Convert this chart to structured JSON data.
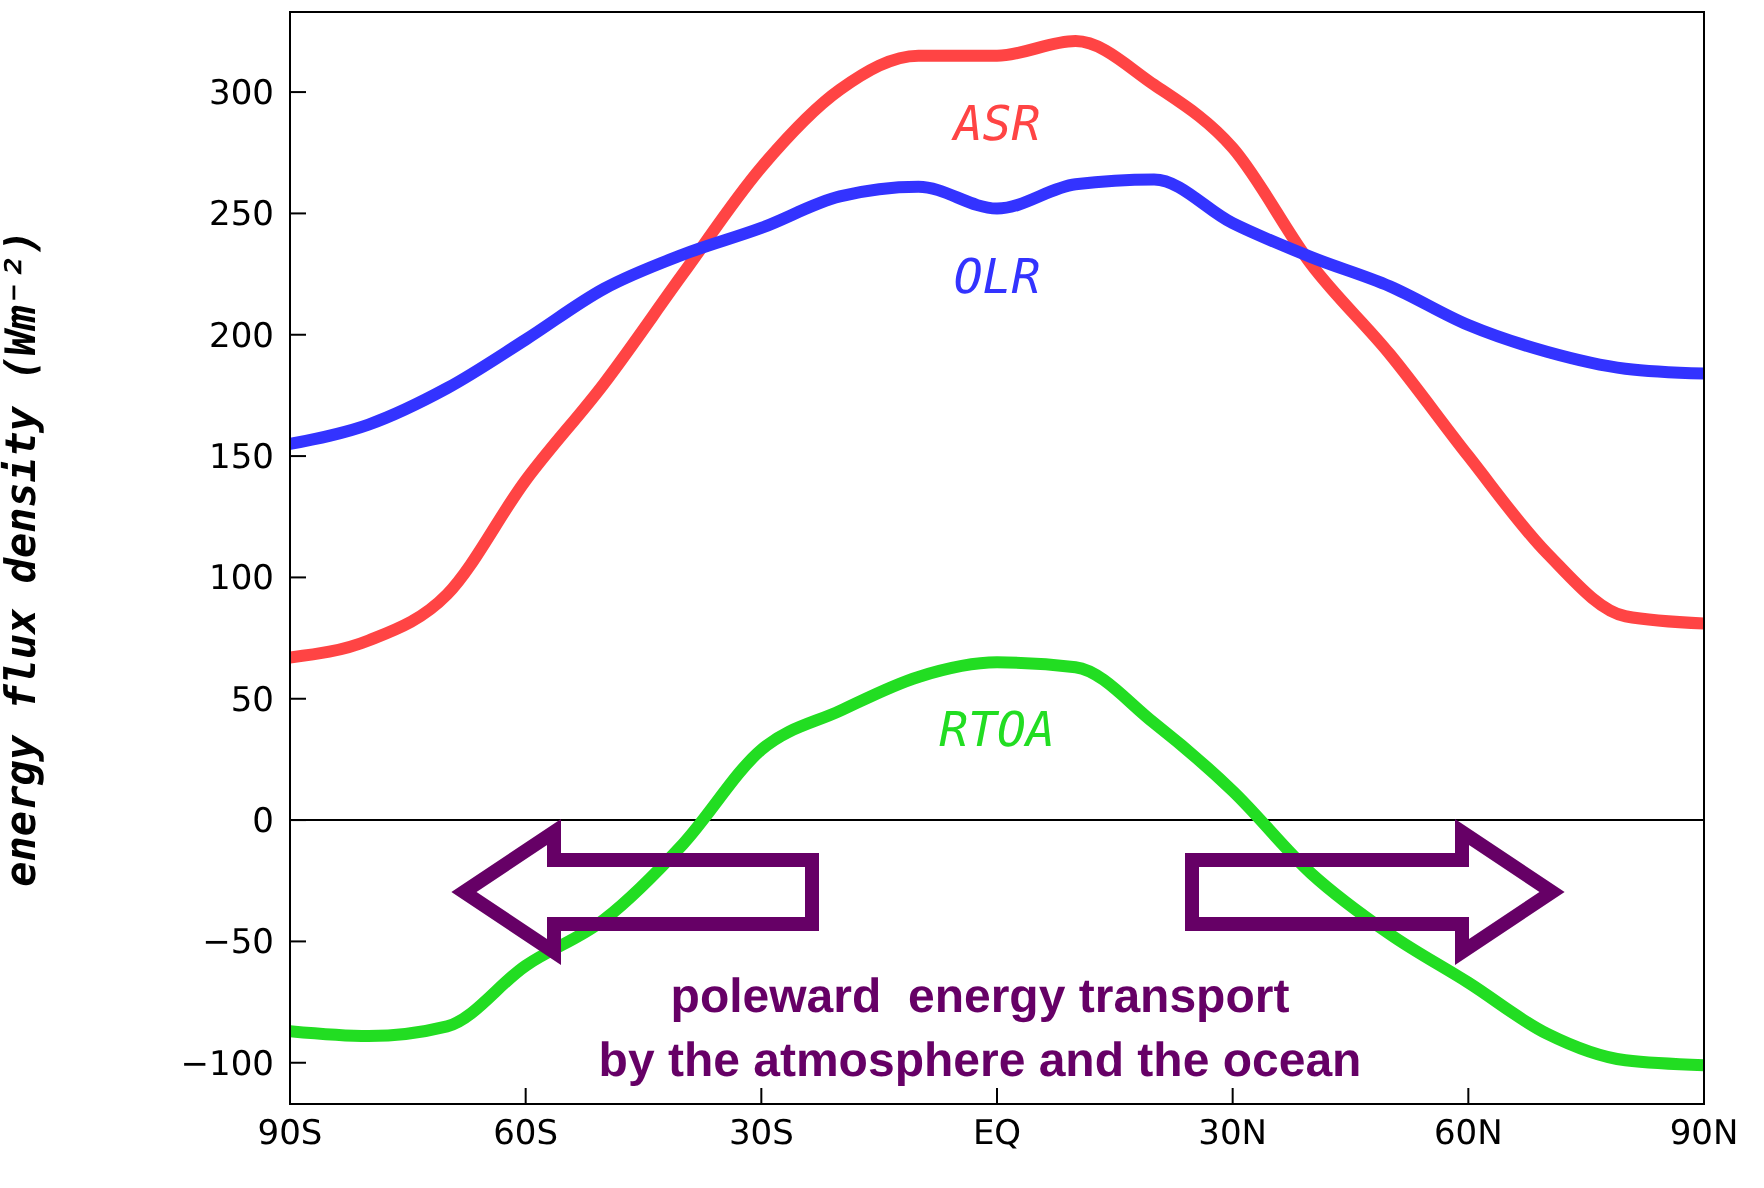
{
  "chart_data": {
    "type": "line",
    "ylabel": "energy flux density (Wm⁻²)",
    "x": [
      -90,
      -80,
      -70,
      -60,
      -50,
      -40,
      -30,
      -20,
      -10,
      0,
      10,
      20,
      30,
      40,
      50,
      60,
      70,
      80,
      90
    ],
    "series": [
      {
        "name": "ASR",
        "color": "#ff4444",
        "values": [
          67,
          74,
          93,
          140,
          180,
          225,
          269,
          301,
          315,
          315,
          321,
          303,
          277,
          229,
          192,
          150,
          110,
          84,
          81
        ]
      },
      {
        "name": "OLR",
        "color": "#3333ff",
        "values": [
          155,
          163,
          178,
          198,
          219,
          233,
          244,
          257,
          261,
          252,
          262,
          264,
          246,
          232,
          220,
          204,
          193,
          186,
          184
        ]
      },
      {
        "name": "RTOA",
        "color": "#22dd22",
        "values": [
          -87,
          -89,
          -85,
          -60,
          -41,
          -10,
          29,
          45,
          59,
          65,
          63,
          40,
          12,
          -22,
          -47,
          -67,
          -88,
          -99,
          -101
        ]
      }
    ],
    "xlim": [
      -90,
      90
    ],
    "xticks": [
      {
        "value": -90,
        "label": "90S"
      },
      {
        "value": -60,
        "label": "60S"
      },
      {
        "value": -30,
        "label": "30S"
      },
      {
        "value": 0,
        "label": "EQ"
      },
      {
        "value": 30,
        "label": "30N"
      },
      {
        "value": 60,
        "label": "60N"
      },
      {
        "value": 90,
        "label": "90N"
      }
    ],
    "ylim": [
      -117,
      333
    ],
    "yticks": [
      -100,
      -50,
      0,
      50,
      100,
      150,
      200,
      250,
      300
    ],
    "ref_lines": [
      {
        "axis": "y",
        "value": 0,
        "color": "#000000"
      }
    ],
    "annotations": [
      "poleward  energy transport\nby the atmosphere and the ocean"
    ],
    "marker": "none",
    "line_style": "solid"
  }
}
